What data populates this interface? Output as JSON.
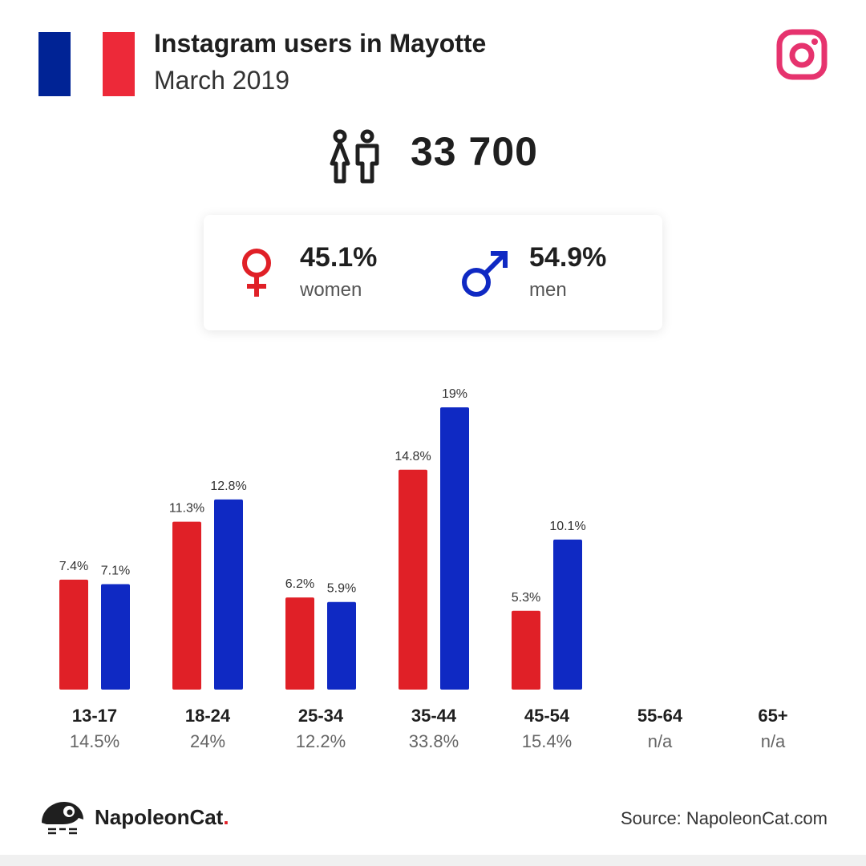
{
  "header": {
    "title": "Instagram users in Mayotte",
    "subtitle": "March 2019"
  },
  "flag": {
    "name": "France",
    "colors": [
      "#002395",
      "#ffffff",
      "#ed2939"
    ]
  },
  "platform_icon": "instagram-icon",
  "total": {
    "icon": "people-icon",
    "value": "33 700"
  },
  "gender": {
    "women": {
      "icon": "female-icon",
      "pct": "45.1%",
      "label": "women",
      "color": "#e02027"
    },
    "men": {
      "icon": "male-icon",
      "pct": "54.9%",
      "label": "men",
      "color": "#0f29c3"
    }
  },
  "chart_data": {
    "type": "bar",
    "categories": [
      "13-17",
      "18-24",
      "25-34",
      "35-44",
      "45-54",
      "55-64",
      "65+"
    ],
    "category_totals": [
      "14.5%",
      "24%",
      "12.2%",
      "33.8%",
      "15.4%",
      "n/a",
      "n/a"
    ],
    "series": [
      {
        "color": "#e02027",
        "values": [
          7.4,
          11.3,
          6.2,
          14.8,
          5.3,
          null,
          null
        ],
        "labels": [
          "7.4%",
          "11.3%",
          "6.2%",
          "14.8%",
          "5.3%",
          "",
          ""
        ]
      },
      {
        "color": "#0f29c3",
        "values": [
          7.1,
          12.8,
          5.9,
          19,
          10.1,
          null,
          null
        ],
        "labels": [
          "7.1%",
          "12.8%",
          "5.9%",
          "19%",
          "10.1%",
          "",
          ""
        ]
      }
    ],
    "ylim": [
      0,
      19
    ],
    "grid": false,
    "legend": "none"
  },
  "footer": {
    "brand": "NapoleonCat",
    "brand_dot": ".",
    "source": "Source: NapoleonCat.com"
  }
}
